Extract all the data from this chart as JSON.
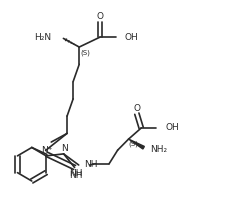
{
  "bg_color": "#ffffff",
  "line_color": "#2a2a2a",
  "line_width": 1.2,
  "font_size": 6.5,
  "fig_width": 2.46,
  "fig_height": 2.15,
  "dpi": 100,
  "xlim": [
    0,
    10
  ],
  "ylim": [
    0,
    8.6
  ]
}
